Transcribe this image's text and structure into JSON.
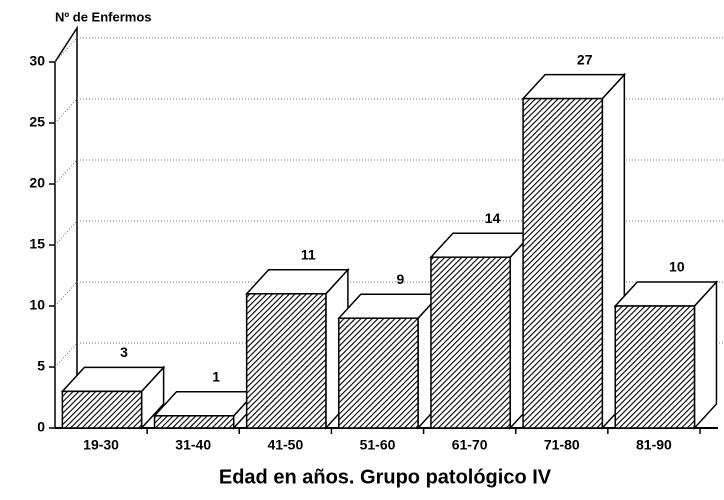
{
  "chart_data": {
    "type": "bar3d",
    "y_axis_label": "Nº de Enfermos",
    "x_axis_label": "Edad en años. Grupo patológico IV",
    "categories": [
      "19-30",
      "31-40",
      "41-50",
      "51-60",
      "61-70",
      "71-80",
      "81-90"
    ],
    "values": [
      3,
      1,
      11,
      9,
      14,
      27,
      10
    ],
    "color": "#000000",
    "ylim": [
      0,
      30
    ],
    "yticks": [
      0,
      5,
      10,
      15,
      20,
      25,
      30
    ],
    "grid": true
  }
}
